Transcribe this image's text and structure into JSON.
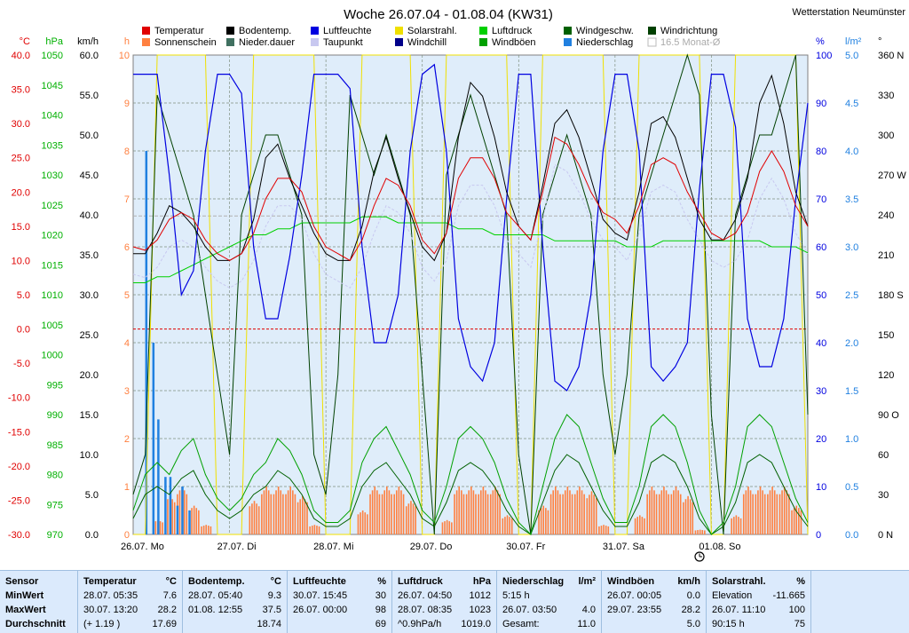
{
  "title": "Woche 26.07.04 - 01.08.04 (KW31)",
  "station": "Wetterstation Neumünster",
  "chart_data": {
    "type": "line",
    "legend": [
      {
        "name": "Temperatur",
        "color": "#e00000"
      },
      {
        "name": "Bodentemp.",
        "color": "#000000"
      },
      {
        "name": "Luftfeuchte",
        "color": "#0000e0"
      },
      {
        "name": "Solarstrahl.",
        "color": "#f0e000"
      },
      {
        "name": "Luftdruck",
        "color": "#00d000"
      },
      {
        "name": "Windgeschw.",
        "color": "#006000"
      },
      {
        "name": "Windrichtung",
        "color": "#004000"
      },
      {
        "name": "Sonnenschein",
        "color": "#ff8040"
      },
      {
        "name": "Nieder.dauer",
        "color": "#407060"
      },
      {
        "name": "Taupunkt",
        "color": "#c8c8f0"
      },
      {
        "name": "Windchill",
        "color": "#00008a"
      },
      {
        "name": "Windböen",
        "color": "#00a000"
      },
      {
        "name": "Niederschlag",
        "color": "#2080e0"
      },
      {
        "name": "16.5 Monat-Ø",
        "color": "#c0c0c0"
      }
    ],
    "axes": {
      "temp": {
        "unit": "°C",
        "ticks": [
          "40.0",
          "35.0",
          "30.0",
          "25.0",
          "20.0",
          "15.0",
          "10.0",
          "5.0",
          "0.0",
          "-5.0",
          "-10.0",
          "-15.0",
          "-20.0",
          "-25.0",
          "-30.0"
        ],
        "color": "#e00000"
      },
      "pressure": {
        "unit": "hPa",
        "ticks": [
          "1050",
          "1045",
          "1040",
          "1035",
          "1030",
          "1025",
          "1020",
          "1015",
          "1010",
          "1005",
          "1000",
          "995",
          "990",
          "985",
          "980",
          "975",
          "970"
        ],
        "color": "#00b000"
      },
      "wind": {
        "unit": "km/h",
        "ticks": [
          "60.0",
          "55.0",
          "50.0",
          "45.0",
          "40.0",
          "35.0",
          "30.0",
          "25.0",
          "20.0",
          "15.0",
          "10.0",
          "5.0",
          "0.0"
        ],
        "color": "#000000"
      },
      "hours": {
        "unit": "h",
        "ticks": [
          "10",
          "9",
          "8",
          "7",
          "6",
          "5",
          "4",
          "3",
          "2",
          "1",
          "0"
        ],
        "color": "#ff8040"
      },
      "humidity": {
        "unit": "%",
        "ticks": [
          "100",
          "90",
          "80",
          "70",
          "60",
          "50",
          "40",
          "30",
          "20",
          "10",
          "0"
        ],
        "color": "#0000e0"
      },
      "rain": {
        "unit": "l/m²",
        "ticks": [
          "5.0",
          "4.5",
          "4.0",
          "3.5",
          "3.0",
          "2.5",
          "2.0",
          "1.5",
          "1.0",
          "0.5",
          "0.0"
        ],
        "color": "#2080e0"
      },
      "direction": {
        "unit": "°",
        "ticks": [
          "360 N",
          "330",
          "300",
          "270 W",
          "240",
          "210",
          "180 S",
          "150",
          "120",
          "90 O",
          "60",
          "30",
          "0 N"
        ],
        "color": "#000000"
      }
    },
    "days": [
      "26.07. Mo",
      "27.07. Di",
      "28.07. Mi",
      "29.07. Do",
      "30.07. Fr",
      "31.07. Sa",
      "01.08. So"
    ],
    "temperature": [
      12,
      11.5,
      13,
      16,
      17,
      16,
      13,
      11,
      10,
      11,
      14,
      19,
      22,
      22,
      20,
      15,
      12,
      11,
      10,
      13,
      18,
      22,
      21,
      18,
      13,
      11,
      14,
      22,
      25,
      25,
      22,
      17,
      15,
      13,
      20,
      28,
      27,
      24,
      20,
      17,
      16,
      14,
      18,
      24,
      25,
      24,
      20,
      17,
      14,
      13,
      14,
      17,
      23,
      26,
      23,
      18,
      15
    ],
    "soil_temp": [
      11,
      11,
      14,
      18,
      17,
      15,
      12,
      10,
      10,
      11,
      16,
      25,
      27,
      22,
      18,
      14,
      11,
      10,
      10,
      15,
      23,
      28,
      22,
      17,
      12,
      10,
      14,
      28,
      36,
      34,
      28,
      20,
      15,
      13,
      21,
      30,
      32,
      28,
      22,
      16,
      14,
      13,
      20,
      30,
      31,
      28,
      22,
      16,
      13,
      13,
      16,
      22,
      33,
      37,
      30,
      20,
      15
    ],
    "humidity": [
      96,
      96,
      96,
      75,
      50,
      55,
      80,
      96,
      96,
      92,
      60,
      45,
      45,
      58,
      75,
      96,
      96,
      96,
      93,
      60,
      40,
      40,
      50,
      80,
      96,
      98,
      80,
      45,
      35,
      32,
      40,
      70,
      96,
      96,
      60,
      32,
      30,
      35,
      50,
      80,
      96,
      96,
      80,
      35,
      32,
      35,
      40,
      72,
      96,
      96,
      85,
      45,
      35,
      35,
      45,
      70,
      90
    ],
    "pressure": [
      1012,
      1012,
      1013,
      1013,
      1014,
      1015,
      1016,
      1017,
      1018,
      1019,
      1020,
      1020,
      1021,
      1021,
      1022,
      1022,
      1022,
      1022,
      1022,
      1023,
      1023,
      1023,
      1022,
      1022,
      1022,
      1022,
      1022,
      1021,
      1021,
      1021,
      1020,
      1020,
      1020,
      1020,
      1020,
      1019,
      1019,
      1019,
      1019,
      1019,
      1019,
      1018,
      1018,
      1018,
      1019,
      1019,
      1019,
      1019,
      1019,
      1019,
      1019,
      1019,
      1019,
      1018,
      1018,
      1018,
      1017
    ],
    "sunshine_h": [
      0,
      0,
      0.3,
      0.8,
      1,
      0.6,
      0.2,
      0,
      0,
      0,
      0.7,
      1,
      1,
      1,
      0.8,
      0.2,
      0,
      0,
      0,
      0.5,
      1,
      1,
      1,
      0.7,
      0,
      0,
      0.3,
      1,
      1,
      1,
      1,
      0.4,
      0,
      0,
      0.6,
      1,
      1,
      1,
      0.9,
      0.2,
      0,
      0,
      0.4,
      1,
      1,
      1,
      0.8,
      0.1,
      0,
      0,
      0.4,
      1,
      1,
      1,
      1,
      0.6,
      0
    ],
    "rain_lm2": [
      0,
      4.0,
      1.2,
      0.6,
      0.5,
      0,
      0,
      0,
      0,
      0,
      0,
      0,
      0,
      0,
      0,
      0,
      0,
      0,
      0,
      0,
      0,
      0,
      0,
      0,
      0,
      0,
      0,
      0,
      0,
      0,
      0,
      0,
      0,
      0,
      0,
      0,
      0,
      0,
      0,
      0,
      0,
      0,
      0,
      0,
      0,
      0,
      0,
      0,
      0,
      0,
      0,
      0,
      0,
      0,
      0,
      0,
      0
    ],
    "wind_speed": [
      2,
      5,
      6,
      5,
      7,
      8,
      5,
      3,
      2,
      3,
      5,
      6,
      8,
      7,
      5,
      2,
      1,
      1,
      2,
      6,
      8,
      9,
      7,
      5,
      2,
      1,
      4,
      8,
      9,
      8,
      6,
      3,
      1,
      0,
      4,
      8,
      10,
      9,
      6,
      3,
      1,
      1,
      4,
      9,
      10,
      9,
      6,
      2,
      0,
      1,
      4,
      9,
      10,
      9,
      6,
      3,
      1
    ],
    "wind_direction": [
      30,
      60,
      330,
      300,
      270,
      240,
      180,
      120,
      60,
      240,
      270,
      300,
      300,
      270,
      240,
      60,
      30,
      120,
      330,
      300,
      270,
      300,
      270,
      240,
      120,
      0,
      270,
      300,
      330,
      300,
      270,
      240,
      60,
      0,
      240,
      270,
      300,
      270,
      240,
      120,
      60,
      120,
      240,
      270,
      300,
      330,
      360,
      330,
      90,
      0,
      240,
      270,
      300,
      300,
      330,
      360,
      90
    ],
    "monthly_avg_temp": 16.5
  },
  "stats": {
    "sensor": {
      "header": "Sensor",
      "rows": [
        "MinWert",
        "MaxWert",
        "Durchschnitt"
      ]
    },
    "columns": [
      {
        "header": "Temperatur",
        "unit": "°C",
        "rows": [
          [
            "28.07.  05:35",
            "7.6"
          ],
          [
            "30.07.  13:20",
            "28.2"
          ],
          [
            "(+ 1.19 )",
            "17.69"
          ]
        ]
      },
      {
        "header": "Bodentemp.",
        "unit": "°C",
        "rows": [
          [
            "28.07.  05:40",
            "9.3"
          ],
          [
            "01.08.  12:55",
            "37.5"
          ],
          [
            "",
            "18.74"
          ]
        ]
      },
      {
        "header": "Luftfeuchte",
        "unit": "%",
        "rows": [
          [
            "30.07.  15:45",
            "30"
          ],
          [
            "26.07.  00:00",
            "98"
          ],
          [
            "",
            "69"
          ]
        ]
      },
      {
        "header": "Luftdruck",
        "unit": "hPa",
        "rows": [
          [
            "26.07.  04:50",
            "1012"
          ],
          [
            "28.07.  08:35",
            "1023"
          ],
          [
            "^0.9hPa/h",
            "1019.0"
          ]
        ]
      },
      {
        "header": "Niederschlag",
        "unit": "l/m²",
        "rows": [
          [
            "5:15 h",
            ""
          ],
          [
            "26.07.  03:50",
            "4.0"
          ],
          [
            "Gesamt:",
            "11.0"
          ]
        ]
      },
      {
        "header": "Windböen",
        "unit": "km/h",
        "rows": [
          [
            "26.07.  00:05",
            "0.0"
          ],
          [
            "29.07.  23:55",
            "28.2"
          ],
          [
            "",
            "5.0"
          ]
        ]
      },
      {
        "header": "Solarstrahl.",
        "unit": "%",
        "rows": [
          [
            "Elevation",
            "-11.665"
          ],
          [
            "26.07.  11:10",
            "100"
          ],
          [
            "90:15 h",
            "75"
          ]
        ]
      }
    ]
  }
}
